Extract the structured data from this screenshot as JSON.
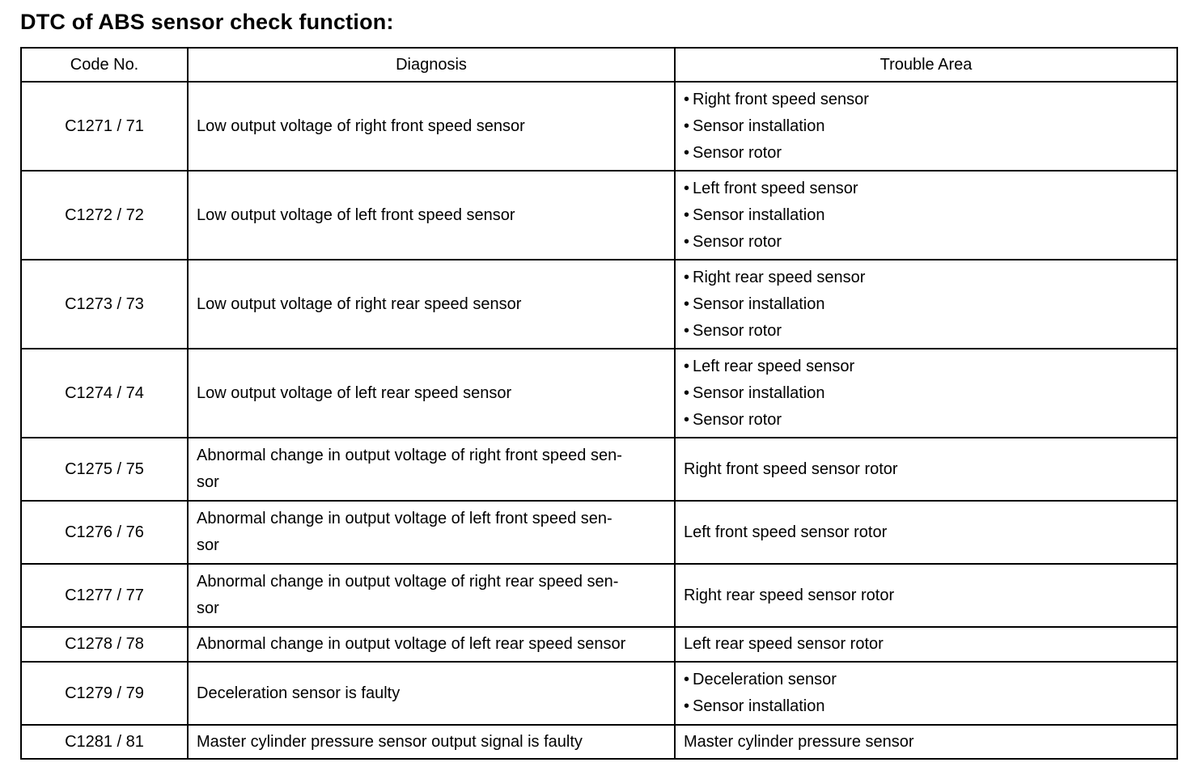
{
  "title": "DTC of ABS sensor check function:",
  "columns": [
    "Code No.",
    "Diagnosis",
    "Trouble Area"
  ],
  "rows": [
    {
      "code": "C1271 / 71",
      "diagnosis": "Low output voltage of right front speed sensor",
      "trouble": [
        "Right front speed sensor",
        "Sensor installation",
        "Sensor rotor"
      ],
      "h": 110
    },
    {
      "code": "C1272 / 72",
      "diagnosis": "Low output voltage of left front speed sensor",
      "trouble": [
        "Left front speed sensor",
        "Sensor installation",
        "Sensor rotor"
      ],
      "h": 110
    },
    {
      "code": "C1273 / 73",
      "diagnosis": "Low output voltage of right rear speed sensor",
      "trouble": [
        "Right rear speed sensor",
        "Sensor installation",
        "Sensor rotor"
      ],
      "h": 110
    },
    {
      "code": "C1274 / 74",
      "diagnosis": "Low output voltage of left rear speed sensor",
      "trouble": [
        "Left rear speed sensor",
        "Sensor installation",
        "Sensor rotor"
      ],
      "h": 110
    },
    {
      "code": "C1275 / 75",
      "diagnosis": "Abnormal change in output voltage of right front speed sen-\nsor",
      "trouble": "Right front speed sensor rotor",
      "h": 78
    },
    {
      "code": "C1276 / 76",
      "diagnosis": "Abnormal change in output voltage of left front speed sen-\nsor",
      "trouble": "Left front speed sensor rotor",
      "h": 78
    },
    {
      "code": "C1277 / 77",
      "diagnosis": "Abnormal change in output voltage of right rear speed sen-\nsor",
      "trouble": "Right rear speed sensor rotor",
      "h": 78
    },
    {
      "code": "C1278 / 78",
      "diagnosis": "Abnormal change in output voltage of left rear speed sensor",
      "trouble": "Left rear speed sensor rotor",
      "h": 43
    },
    {
      "code": "C1279 / 79",
      "diagnosis": "Deceleration sensor is faulty",
      "trouble": [
        "Deceleration sensor",
        "Sensor installation"
      ],
      "h": 78
    },
    {
      "code": "C1281 / 81",
      "diagnosis": "Master cylinder pressure sensor output signal is faulty",
      "trouble": "Master cylinder pressure sensor",
      "h": 42
    }
  ]
}
